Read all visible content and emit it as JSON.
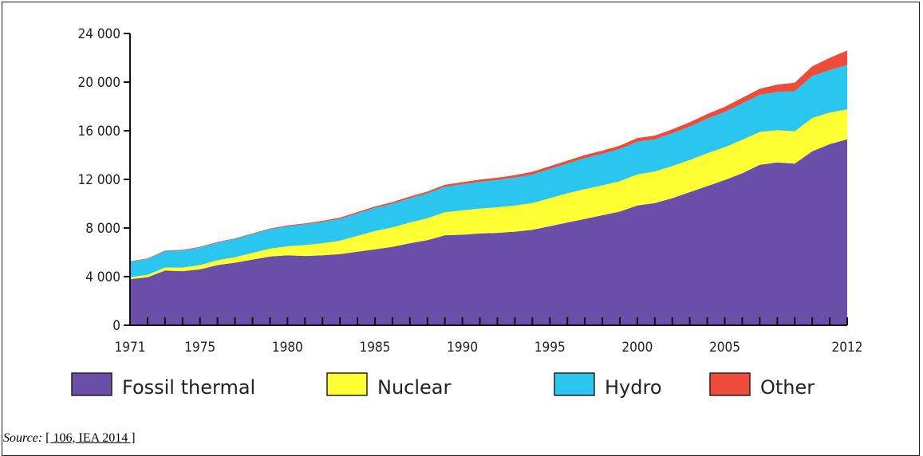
{
  "chart_data": {
    "type": "area",
    "stacked": true,
    "x": [
      1971,
      1972,
      1973,
      1974,
      1975,
      1976,
      1977,
      1978,
      1979,
      1980,
      1981,
      1982,
      1983,
      1984,
      1985,
      1986,
      1987,
      1988,
      1989,
      1990,
      1991,
      1992,
      1993,
      1994,
      1995,
      1996,
      1997,
      1998,
      1999,
      2000,
      2001,
      2002,
      2003,
      2004,
      2005,
      2006,
      2007,
      2008,
      2009,
      2010,
      2011,
      2012
    ],
    "x_tick_labels": [
      "1971",
      "1975",
      "1980",
      "1985",
      "1990",
      "1995",
      "2000",
      "2005",
      "2012"
    ],
    "y_tick_labels": [
      "0",
      "4 000",
      "8 000",
      "12 000",
      "16 000",
      "20 000",
      "24 000"
    ],
    "ylim": [
      0,
      24000
    ],
    "series": [
      {
        "name": "Fossil thermal",
        "color": "#6a4fa8",
        "values": [
          3800,
          3950,
          4500,
          4450,
          4600,
          4950,
          5150,
          5400,
          5650,
          5750,
          5700,
          5750,
          5850,
          6050,
          6250,
          6450,
          6750,
          7000,
          7400,
          7450,
          7550,
          7600,
          7700,
          7850,
          8150,
          8450,
          8750,
          9050,
          9350,
          9850,
          10050,
          10450,
          10950,
          11450,
          11950,
          12500,
          13200,
          13400,
          13300,
          14300,
          14900,
          15300
        ]
      },
      {
        "name": "Nuclear",
        "color": "#ffff33",
        "values": [
          150,
          200,
          250,
          300,
          350,
          400,
          450,
          550,
          650,
          750,
          900,
          1000,
          1100,
          1300,
          1500,
          1600,
          1700,
          1800,
          1900,
          2000,
          2050,
          2100,
          2150,
          2200,
          2300,
          2400,
          2450,
          2450,
          2500,
          2550,
          2600,
          2650,
          2650,
          2700,
          2700,
          2750,
          2700,
          2650,
          2650,
          2750,
          2600,
          2450
        ]
      },
      {
        "name": "Hydro",
        "color": "#2ac6ef",
        "values": [
          1250,
          1300,
          1350,
          1400,
          1450,
          1450,
          1500,
          1550,
          1600,
          1650,
          1700,
          1750,
          1800,
          1850,
          1900,
          1950,
          2000,
          2050,
          2100,
          2150,
          2200,
          2250,
          2300,
          2350,
          2400,
          2450,
          2550,
          2600,
          2650,
          2700,
          2650,
          2700,
          2750,
          2850,
          2900,
          3000,
          3050,
          3150,
          3300,
          3450,
          3500,
          3650
        ]
      },
      {
        "name": "Other",
        "color": "#ef4b3a",
        "values": [
          50,
          50,
          50,
          50,
          50,
          50,
          50,
          60,
          60,
          70,
          80,
          90,
          100,
          110,
          120,
          130,
          140,
          150,
          160,
          170,
          180,
          190,
          200,
          220,
          230,
          240,
          250,
          260,
          280,
          300,
          300,
          320,
          350,
          380,
          420,
          460,
          500,
          600,
          700,
          800,
          1000,
          1200
        ]
      }
    ],
    "grid": false,
    "legend_position": "bottom"
  },
  "source": {
    "prefix": "Source:",
    "link": "[ 106, IEA 2014 ]"
  }
}
